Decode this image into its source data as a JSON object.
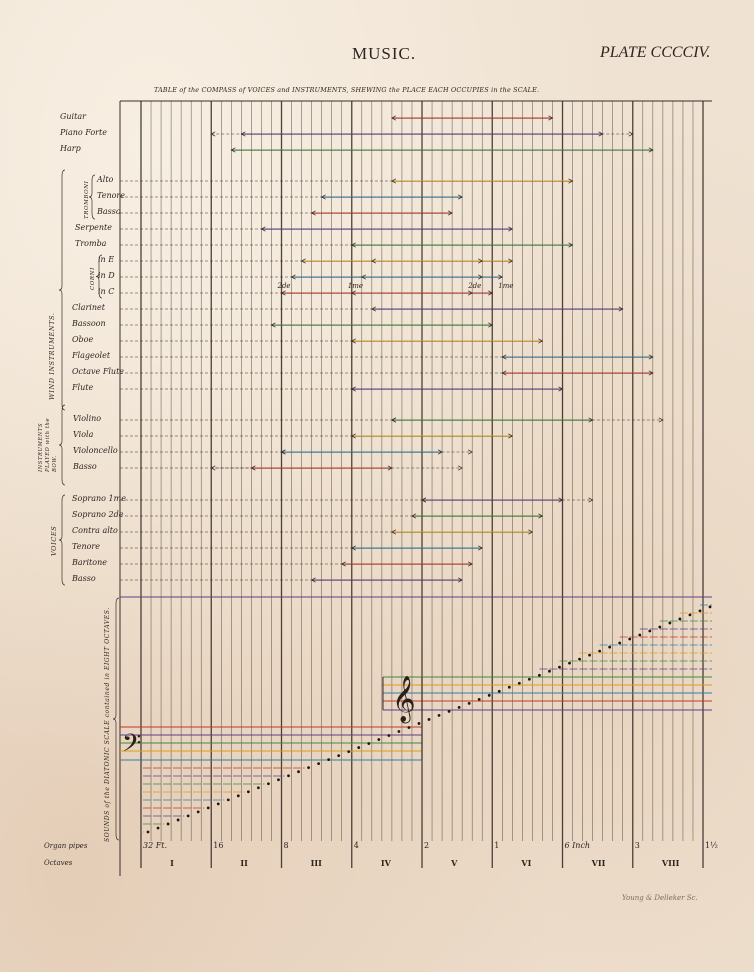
{
  "header": {
    "title": "MUSIC.",
    "plate": "PLATE CCCCIV.",
    "subtitle": "TABLE of the COMPASS of VOICES and INSTRUMENTS, SHEWING the PLACE EACH OCCUPIES in the SCALE."
  },
  "groups": {
    "wind": "WIND INSTRUMENTS.",
    "tromboni": "TROMBONI",
    "corni": "CORNI",
    "bow": "INSTRUMENTS PLAYED with the BOW.",
    "voices": "VOICES",
    "scale": "SOUNDS of the DIATONIC SCALE contained in EIGHT OCTAVES."
  },
  "rows": [
    {
      "label": "Guitar",
      "range": [
        25,
        41
      ]
    },
    {
      "label": "Piano Forte",
      "range": [
        10,
        46
      ],
      "dashed": [
        7,
        49
      ]
    },
    {
      "label": "Harp",
      "range": [
        9,
        51
      ]
    },
    {
      "label": "Alto",
      "range": [
        25,
        43
      ],
      "lead": true
    },
    {
      "label": "Tenore",
      "range": [
        18,
        32
      ],
      "lead": true
    },
    {
      "label": "Basso",
      "range": [
        17,
        31
      ],
      "lead": true
    },
    {
      "label": "Serpente",
      "range": [
        12,
        37
      ],
      "lead": true
    },
    {
      "label": "Tromba",
      "range": [
        21,
        43
      ],
      "lead": true
    },
    {
      "label": "in E",
      "range": [
        16,
        37
      ],
      "inner": [
        23,
        34
      ],
      "lead": true
    },
    {
      "label": "in D",
      "range": [
        15,
        36
      ],
      "inner": [
        22,
        34
      ],
      "lead": true
    },
    {
      "label": "in C",
      "range": [
        14,
        35
      ],
      "inner": [
        21,
        33
      ],
      "lead": true
    },
    {
      "label": "Clarinet",
      "range": [
        23,
        48
      ],
      "lead": true
    },
    {
      "label": "Bassoon",
      "range": [
        13,
        35
      ],
      "lead": true
    },
    {
      "label": "Oboe",
      "range": [
        21,
        40
      ],
      "lead": true
    },
    {
      "label": "Flageolet",
      "range": [
        36,
        51
      ],
      "lead": true
    },
    {
      "label": "Octave Flute",
      "range": [
        36,
        51
      ],
      "lead": true
    },
    {
      "label": "Flute",
      "range": [
        21,
        42
      ],
      "lead": true
    },
    {
      "label": "Violino",
      "range": [
        25,
        45
      ],
      "dashed": [
        25,
        52
      ],
      "lead": true
    },
    {
      "label": "Viola",
      "range": [
        21,
        37
      ],
      "lead": true
    },
    {
      "label": "Violoncello",
      "range": [
        14,
        30
      ],
      "dashed": [
        14,
        33
      ],
      "lead": true
    },
    {
      "label": "Basso",
      "range": [
        11,
        25
      ],
      "dashed": [
        7,
        32
      ],
      "lead": true
    },
    {
      "label": "Soprano 1me",
      "range": [
        28,
        42
      ],
      "dashed": [
        28,
        45
      ],
      "lead": true
    },
    {
      "label": "Soprano 2de",
      "range": [
        27,
        40
      ],
      "lead": true
    },
    {
      "label": "Contra alto",
      "range": [
        25,
        39
      ],
      "lead": true
    },
    {
      "label": "Tenore",
      "range": [
        21,
        34
      ],
      "lead": true
    },
    {
      "label": "Baritone",
      "range": [
        20,
        33
      ],
      "lead": true
    },
    {
      "label": "Basso",
      "range": [
        17,
        32
      ],
      "lead": true
    }
  ],
  "horn_marks": [
    {
      "text": "2de",
      "at": 14
    },
    {
      "text": "1me",
      "at": 21
    },
    {
      "text": "2de",
      "at": 33
    },
    {
      "text": "1me",
      "at": 36
    }
  ],
  "scale": {
    "notes": 57,
    "clefs": [
      "bass-clef-icon",
      "treble-clef-icon"
    ]
  },
  "footer": {
    "organ_label": "Organ pipes",
    "octaves_label": "Octaves",
    "pipes": [
      "32 Ft.",
      "16",
      "8",
      "4",
      "2",
      "1",
      "6 Inch",
      "3",
      "1½"
    ],
    "octaves": [
      "I",
      "II",
      "III",
      "IV",
      "V",
      "VI",
      "VII",
      "VIII"
    ]
  },
  "engraver": "Young & Delleker Sc.",
  "colors": {
    "ink": "#2e2520",
    "paper": "#efe2d2",
    "staff": [
      "#c0392b",
      "#5b3f8c",
      "#3f8a3f",
      "#d4a020",
      "#2f7fa8"
    ]
  }
}
